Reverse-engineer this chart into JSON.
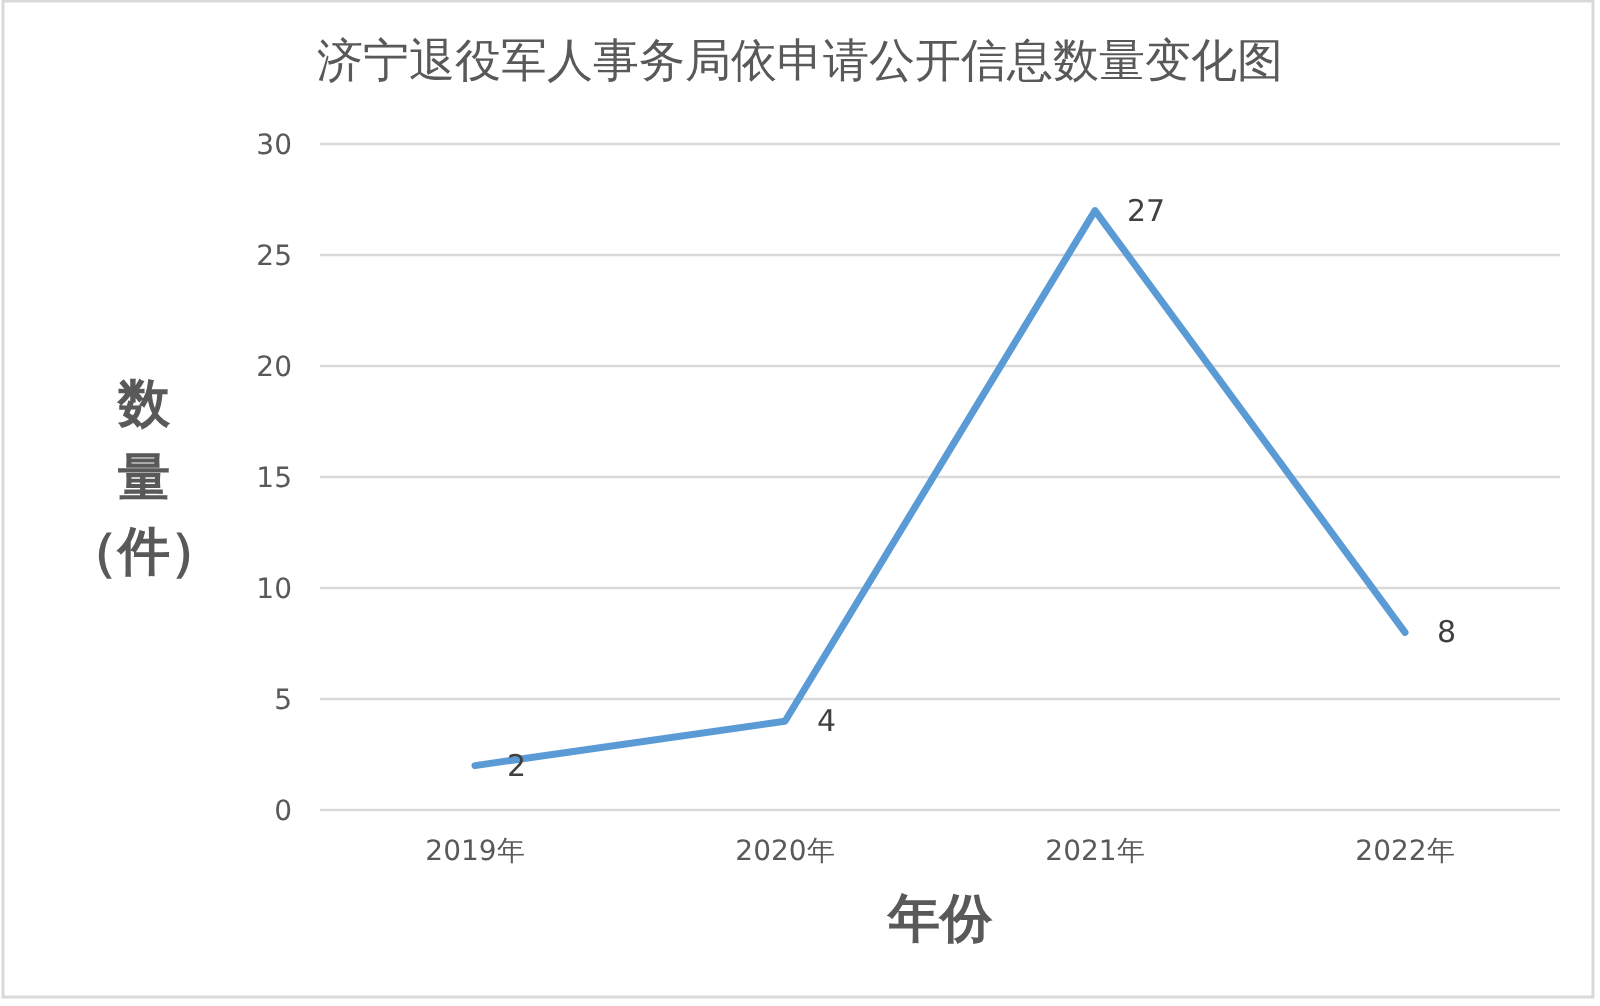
{
  "chart_data": {
    "type": "line",
    "title": "济宁退役军人事务局依申请公开信息数量变化图",
    "xlabel": "年份",
    "ylabel": "数量（件）",
    "categories": [
      "2019年",
      "2020年",
      "2021年",
      "2022年"
    ],
    "values": [
      2,
      4,
      27,
      8
    ],
    "color": "#5b9bd5",
    "ylim": [
      0,
      30
    ],
    "yticks": [
      0,
      5,
      10,
      15,
      20,
      25,
      30
    ],
    "grid": "y",
    "data_labels": true
  }
}
